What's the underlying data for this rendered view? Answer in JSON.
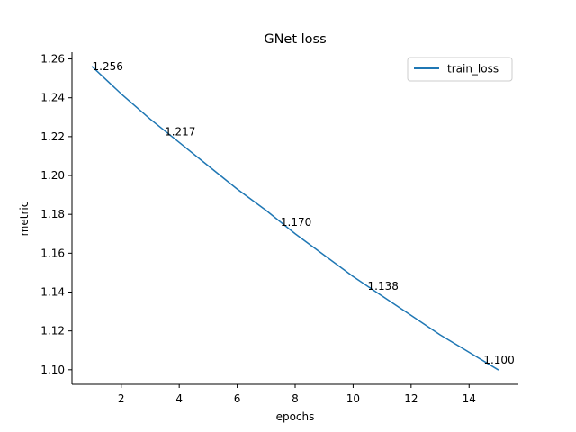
{
  "chart_data": {
    "type": "line",
    "title": "GNet loss",
    "xlabel": "epochs",
    "ylabel": "metric",
    "xlim": [
      0.3,
      15.7
    ],
    "ylim": [
      1.0925,
      1.2635
    ],
    "xticks": [
      2,
      4,
      6,
      8,
      10,
      12,
      14
    ],
    "xtick_labels": [
      "2",
      "4",
      "6",
      "8",
      "10",
      "12",
      "14"
    ],
    "yticks": [
      1.1,
      1.12,
      1.14,
      1.16,
      1.18,
      1.2,
      1.22,
      1.24,
      1.26
    ],
    "ytick_labels": [
      "1.10",
      "1.12",
      "1.14",
      "1.16",
      "1.18",
      "1.20",
      "1.22",
      "1.24",
      "1.26"
    ],
    "grid": false,
    "legend_position": "top-right",
    "series": [
      {
        "name": "train_loss",
        "color": "#1f77b4",
        "x": [
          1,
          2,
          3,
          4,
          5,
          6,
          7,
          8,
          9,
          10,
          11,
          12,
          13,
          14,
          15
        ],
        "y": [
          1.256,
          1.242,
          1.229,
          1.217,
          1.205,
          1.193,
          1.182,
          1.17,
          1.159,
          1.148,
          1.138,
          1.128,
          1.118,
          1.109,
          1.1
        ]
      }
    ],
    "annotations": [
      {
        "x": 1,
        "y": 1.256,
        "text": "1.256"
      },
      {
        "x": 3.5,
        "y": 1.2225,
        "text": "1.217"
      },
      {
        "x": 7.5,
        "y": 1.176,
        "text": "1.170"
      },
      {
        "x": 10.5,
        "y": 1.143,
        "text": "1.138"
      },
      {
        "x": 14.5,
        "y": 1.105,
        "text": "1.100"
      }
    ]
  }
}
